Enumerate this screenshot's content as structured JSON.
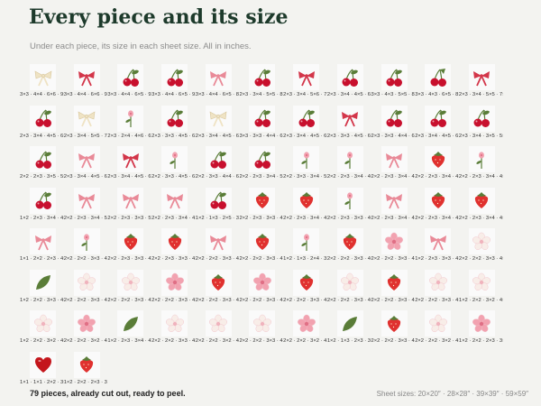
{
  "header": {
    "title": "Every piece and its size",
    "subtitle": "Under each piece, its size in each sheet size. All in inches."
  },
  "footer": {
    "pieces_note": "79 pieces, already cut out, ready to peel.",
    "sheet_sizes": "Sheet sizes: 20×20″ · 28×28″ · 39×39″ · 59×59″"
  },
  "colors": {
    "title": "#1d3a2b",
    "cherry": "#c8102e",
    "bow_red": "#d3364a",
    "bow_pink": "#e98a98",
    "bow_cream": "#efe3c4",
    "strawberry": "#e0312f",
    "flower_pink": "#f2a2b0",
    "flower_white": "#f8ede8",
    "leaf": "#5a7d38",
    "heart": "#c4161c"
  },
  "rows": [
    [
      {
        "icon": "bow-cream-icon",
        "size": "3×3 · 4×4 · 6×6 · 9×9″"
      },
      {
        "icon": "bow-red-icon",
        "size": "3×3 · 4×4 · 6×6 · 9×9″"
      },
      {
        "icon": "cherry-icon",
        "size": "3×3 · 4×4 · 6×5 · 9×8″"
      },
      {
        "icon": "cherry-icon",
        "size": "3×3 · 4×4 · 6×5 · 9×8″"
      },
      {
        "icon": "bow-pink-icon",
        "size": "3×3 · 4×4 · 6×5 · 8×7″"
      },
      {
        "icon": "cherry-icon",
        "size": "2×3 · 3×4 · 5×5 · 8×8″"
      },
      {
        "icon": "bow-red-icon",
        "size": "2×3 · 3×4 · 5×6 · 7×9″"
      },
      {
        "icon": "cherry-icon",
        "size": "2×3 · 3×4 · 4×5 · 6×8″"
      },
      {
        "icon": "cherry-icon",
        "size": "3×3 · 4×3 · 5×5 · 8×7″"
      },
      {
        "icon": "cherry-leaf-icon",
        "size": "3×3 · 4×3 · 6×5 · 8×7″"
      },
      {
        "icon": "bow-red-icon",
        "size": "2×3 · 3×4 · 5×5 · 7×8″"
      }
    ],
    [
      {
        "icon": "cherry-icon",
        "size": "2×3 · 3×4 · 4×5 · 6×8″"
      },
      {
        "icon": "bow-cream-icon",
        "size": "2×3 · 3×4 · 5×5 · 7×8″"
      },
      {
        "icon": "flower-stem-icon",
        "size": "2×3 · 2×4 · 4×6 · 6×9″"
      },
      {
        "icon": "cherry-icon",
        "size": "2×3 · 3×3 · 4×5 · 6×7″"
      },
      {
        "icon": "bow-cream-icon",
        "size": "2×3 · 3×4 · 4×5 · 6×8″"
      },
      {
        "icon": "cherry-icon",
        "size": "3×3 · 3×3 · 4×4 · 6×6″"
      },
      {
        "icon": "cherry-icon",
        "size": "2×3 · 3×4 · 4×5 · 6×7″"
      },
      {
        "icon": "bow-red-icon",
        "size": "2×3 · 3×3 · 4×5 · 6×7″"
      },
      {
        "icon": "cherry-icon",
        "size": "2×3 · 3×3 · 4×4 · 6×6″"
      },
      {
        "icon": "cherry-icon",
        "size": "2×3 · 3×4 · 4×5 · 6×7″"
      },
      {
        "icon": "cherry-icon",
        "size": "2×3 · 3×4 · 3×5 · 5×8″"
      }
    ],
    [
      {
        "icon": "cherry-icon",
        "size": "2×2 · 2×3 · 3×5 · 5×7″"
      },
      {
        "icon": "bow-pink-icon",
        "size": "2×3 · 3×4 · 4×5 · 6×7″"
      },
      {
        "icon": "bow-red-icon",
        "size": "2×3 · 3×4 · 4×5 · 6×8″"
      },
      {
        "icon": "flower-stem-icon",
        "size": "2×2 · 3×3 · 4×5 · 6×7″"
      },
      {
        "icon": "cherry-icon",
        "size": "2×2 · 3×3 · 4×4 · 6×6″"
      },
      {
        "icon": "cherry-icon",
        "size": "2×2 · 2×3 · 3×4 · 5×6″"
      },
      {
        "icon": "flower-stem-icon",
        "size": "2×2 · 3×3 · 3×4 · 5×6″"
      },
      {
        "icon": "flower-stem-icon",
        "size": "2×2 · 2×3 · 3×4 · 4×6″"
      },
      {
        "icon": "bow-pink-icon",
        "size": "2×2 · 2×3 · 3×4 · 4×5″"
      },
      {
        "icon": "strawberry-icon",
        "size": "2×2 · 2×3 · 3×4 · 4×6″"
      },
      {
        "icon": "flower-stem-icon",
        "size": "2×2 · 2×3 · 3×4 · 4×5″"
      }
    ],
    [
      {
        "icon": "cherry-icon",
        "size": "1×2 · 2×3 · 3×4 · 4×6″"
      },
      {
        "icon": "bow-pink-icon",
        "size": "2×2 · 2×3 · 3×4 · 5×5″"
      },
      {
        "icon": "bow-pink-icon",
        "size": "2×2 · 2×3 · 3×3 · 5×5″"
      },
      {
        "icon": "bow-pink-icon",
        "size": "2×2 · 2×3 · 3×4 · 4×5″"
      },
      {
        "icon": "cherry-icon",
        "size": "1×2 · 1×3 · 2×5 · 3×7″"
      },
      {
        "icon": "strawberry-icon",
        "size": "2×2 · 2×3 · 3×3 · 4×5″"
      },
      {
        "icon": "strawberry-icon",
        "size": "2×2 · 2×3 · 3×4 · 4×5″"
      },
      {
        "icon": "flower-stem-icon",
        "size": "2×2 · 2×3 · 3×3 · 4×5″"
      },
      {
        "icon": "bow-pink-icon",
        "size": "2×2 · 2×3 · 3×4 · 4×5″"
      },
      {
        "icon": "strawberry-icon",
        "size": "2×2 · 2×3 · 3×4 · 4×5″"
      },
      {
        "icon": "strawberry-icon",
        "size": "2×2 · 2×3 · 3×4 · 4×5″"
      }
    ],
    [
      {
        "icon": "bow-pink-icon",
        "size": "1×1 · 2×2 · 2×3 · 4×4″"
      },
      {
        "icon": "flower-stem-icon",
        "size": "2×2 · 2×2 · 3×3 · 4×5″"
      },
      {
        "icon": "strawberry-icon",
        "size": "2×2 · 2×3 · 3×3 · 4×4″"
      },
      {
        "icon": "strawberry-icon",
        "size": "2×2 · 2×3 · 3×3 · 4×4″"
      },
      {
        "icon": "bow-pink-icon",
        "size": "2×2 · 2×2 · 3×3 · 4×5″"
      },
      {
        "icon": "strawberry-icon",
        "size": "2×2 · 2×2 · 3×3 · 4×4″"
      },
      {
        "icon": "flower-stem-icon",
        "size": "1×2 · 1×3 · 2×4 · 3×5″"
      },
      {
        "icon": "strawberry-icon",
        "size": "2×2 · 2×2 · 3×3 · 4×4″"
      },
      {
        "icon": "flower-pink-icon",
        "size": "2×2 · 2×2 · 3×3 · 4×4″"
      },
      {
        "icon": "bow-pink-icon",
        "size": "1×2 · 2×3 · 3×3 · 4×5″"
      },
      {
        "icon": "flower-white-icon",
        "size": "2×2 · 2×2 · 3×3 · 4×4″"
      }
    ],
    [
      {
        "icon": "leaf-icon",
        "size": "1×2 · 2×2 · 3×3 · 4×4″"
      },
      {
        "icon": "flower-white-icon",
        "size": "2×2 · 2×2 · 3×3 · 4×4″"
      },
      {
        "icon": "flower-white-icon",
        "size": "2×2 · 2×2 · 3×3 · 4×4″"
      },
      {
        "icon": "flower-pink-icon",
        "size": "2×2 · 2×2 · 3×3 · 4×4″"
      },
      {
        "icon": "strawberry-icon",
        "size": "2×2 · 2×2 · 3×3 · 4×4″"
      },
      {
        "icon": "flower-pink-icon",
        "size": "2×2 · 2×2 · 3×3 · 4×4″"
      },
      {
        "icon": "strawberry-icon",
        "size": "2×2 · 2×2 · 3×3 · 4×4″"
      },
      {
        "icon": "flower-white-icon",
        "size": "2×2 · 2×2 · 3×3 · 4×4″"
      },
      {
        "icon": "strawberry-icon",
        "size": "2×2 · 2×2 · 3×3 · 4×4″"
      },
      {
        "icon": "flower-white-icon",
        "size": "2×2 · 2×2 · 3×3 · 4×4″"
      },
      {
        "icon": "flower-white-icon",
        "size": "1×2 · 2×2 · 3×2 · 4×4″"
      }
    ],
    [
      {
        "icon": "flower-white-icon",
        "size": "1×2 · 2×2 · 3×2 · 4×4″"
      },
      {
        "icon": "flower-pink-icon",
        "size": "2×2 · 2×2 · 3×2 · 4×4″"
      },
      {
        "icon": "leaf-icon",
        "size": "1×2 · 2×3 · 3×4 · 4×4″"
      },
      {
        "icon": "flower-white-icon",
        "size": "2×2 · 2×2 · 3×3 · 4×4″"
      },
      {
        "icon": "flower-white-icon",
        "size": "2×2 · 2×2 · 3×2 · 4×3″"
      },
      {
        "icon": "flower-white-icon",
        "size": "2×2 · 2×2 · 3×3 · 4×4″"
      },
      {
        "icon": "flower-pink-icon",
        "size": "2×2 · 2×2 · 3×2 · 4×4″"
      },
      {
        "icon": "leaf-icon",
        "size": "1×2 · 1×3 · 2×3 · 3×4″"
      },
      {
        "icon": "strawberry-icon",
        "size": "2×2 · 2×2 · 3×3 · 4×4″"
      },
      {
        "icon": "flower-white-icon",
        "size": "2×2 · 2×2 · 3×2 · 4×3″"
      },
      {
        "icon": "flower-pink-icon",
        "size": "1×2 · 2×2 · 2×3 · 3×3″"
      }
    ],
    [
      {
        "icon": "heart-icon",
        "size": "1×1 · 1×1 · 2×2 · 3×3″"
      },
      {
        "icon": "strawberry-icon",
        "size": "1×2 · 2×2 · 2×3 · 3×3″"
      }
    ]
  ]
}
